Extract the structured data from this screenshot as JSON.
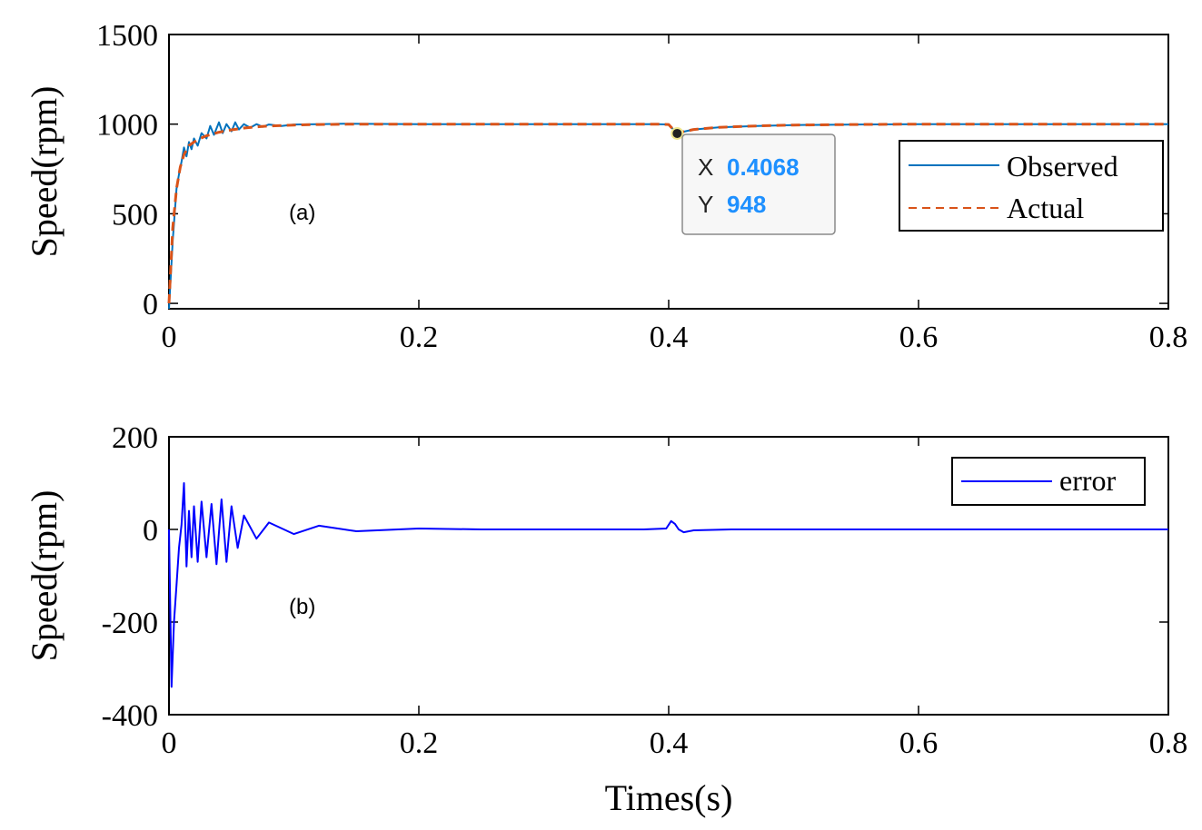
{
  "colors": {
    "observed": "#0072BD",
    "actual": "#D95319",
    "error": "#0000FF",
    "datatip_value": "#1E90FF",
    "axis": "#000000"
  },
  "chart_data": [
    {
      "type": "line",
      "panel_label": "(a)",
      "xlabel": "",
      "ylabel": "Speed(rpm)",
      "xlim": [
        0,
        0.8
      ],
      "ylim": [
        -30,
        1500
      ],
      "xticks": [
        0,
        0.2,
        0.4,
        0.6,
        0.8
      ],
      "xtick_labels": [
        "0",
        "0.2",
        "0.4",
        "0.6",
        "0.8"
      ],
      "yticks": [
        0,
        500,
        1000,
        1500
      ],
      "ytick_labels": [
        "0",
        "500",
        "1000",
        "1500"
      ],
      "legend_position": "right",
      "series": [
        {
          "name": "Observed",
          "style": "solid",
          "x": [
            0,
            0.003,
            0.006,
            0.008,
            0.01,
            0.012,
            0.014,
            0.016,
            0.018,
            0.02,
            0.023,
            0.026,
            0.03,
            0.033,
            0.036,
            0.04,
            0.043,
            0.046,
            0.05,
            0.053,
            0.056,
            0.06,
            0.065,
            0.07,
            0.075,
            0.08,
            0.09,
            0.1,
            0.12,
            0.14,
            0.2,
            0.3,
            0.39,
            0.4,
            0.405,
            0.4068,
            0.41,
            0.42,
            0.44,
            0.47,
            0.5,
            0.55,
            0.6,
            0.7,
            0.8
          ],
          "y": [
            -30,
            350,
            640,
            720,
            790,
            870,
            820,
            900,
            860,
            920,
            880,
            950,
            920,
            990,
            940,
            1010,
            950,
            1000,
            960,
            1010,
            970,
            1000,
            980,
            1000,
            985,
            998,
            990,
            998,
            1000,
            1002,
            1000,
            1000,
            1000,
            998,
            960,
            948,
            955,
            970,
            982,
            990,
            995,
            998,
            1000,
            1000,
            1000
          ]
        },
        {
          "name": "Actual",
          "style": "dashed",
          "x": [
            0,
            0.003,
            0.006,
            0.009,
            0.012,
            0.016,
            0.02,
            0.025,
            0.03,
            0.04,
            0.05,
            0.06,
            0.07,
            0.08,
            0.1,
            0.12,
            0.15,
            0.2,
            0.3,
            0.39,
            0.4,
            0.405,
            0.4068,
            0.41,
            0.42,
            0.44,
            0.47,
            0.5,
            0.55,
            0.6,
            0.7,
            0.8
          ],
          "y": [
            0,
            420,
            640,
            760,
            830,
            880,
            900,
            920,
            935,
            955,
            968,
            978,
            985,
            990,
            995,
            998,
            1000,
            1000,
            1000,
            1000,
            998,
            960,
            948,
            955,
            970,
            982,
            990,
            995,
            998,
            1000,
            1000,
            1000
          ]
        }
      ],
      "datatip": {
        "x_label": "X",
        "x_value": "0.4068",
        "y_label": "Y",
        "y_value": "948",
        "point_x": 0.4068,
        "point_y": 948
      }
    },
    {
      "type": "line",
      "panel_label": "(b)",
      "xlabel": "Times(s)",
      "ylabel": "Speed(rpm)",
      "xlim": [
        0,
        0.8
      ],
      "ylim": [
        -400,
        200
      ],
      "xticks": [
        0,
        0.2,
        0.4,
        0.6,
        0.8
      ],
      "xtick_labels": [
        "0",
        "0.2",
        "0.4",
        "0.6",
        "0.8"
      ],
      "yticks": [
        -400,
        -200,
        0,
        200
      ],
      "ytick_labels": [
        "-400",
        "-200",
        "0",
        "200"
      ],
      "legend_position": "top-right",
      "series": [
        {
          "name": "error",
          "style": "solid",
          "x": [
            0,
            0.002,
            0.004,
            0.006,
            0.008,
            0.01,
            0.012,
            0.014,
            0.016,
            0.018,
            0.02,
            0.023,
            0.026,
            0.03,
            0.034,
            0.038,
            0.042,
            0.046,
            0.05,
            0.055,
            0.06,
            0.07,
            0.08,
            0.1,
            0.12,
            0.15,
            0.2,
            0.25,
            0.3,
            0.38,
            0.398,
            0.402,
            0.405,
            0.408,
            0.412,
            0.42,
            0.45,
            0.5,
            0.6,
            0.7,
            0.8
          ],
          "y": [
            0,
            -340,
            -200,
            -120,
            -40,
            10,
            100,
            -80,
            40,
            -60,
            50,
            -70,
            60,
            -60,
            55,
            -75,
            65,
            -70,
            50,
            -40,
            30,
            -20,
            15,
            -10,
            8,
            -4,
            2,
            0,
            0,
            0,
            2,
            18,
            12,
            0,
            -6,
            -2,
            0,
            0,
            0,
            0,
            0
          ]
        }
      ]
    }
  ]
}
